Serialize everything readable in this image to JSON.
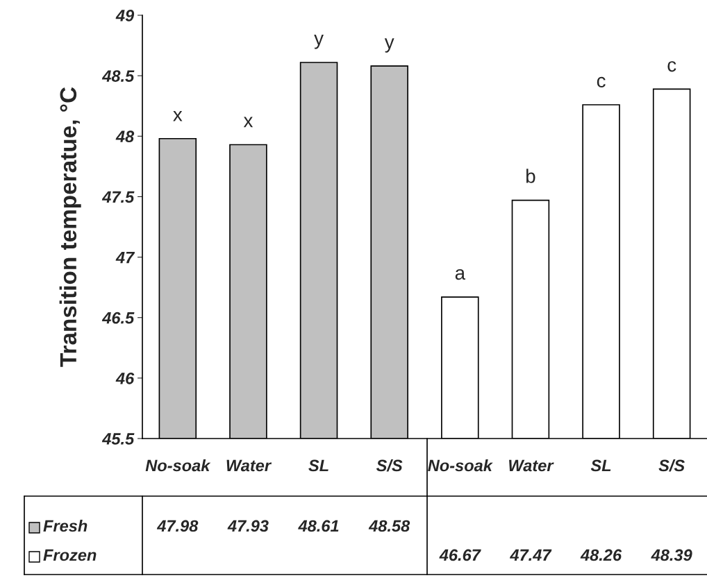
{
  "chart_data": {
    "type": "bar",
    "ylabel": "Transition temperatue, °C",
    "categories": [
      "No-soak",
      "Water",
      "SL",
      "S/S",
      "No-soak",
      "Water",
      "SL",
      "S/S"
    ],
    "series": [
      {
        "name": "Fresh",
        "color": "#c0c0c0",
        "values": [
          47.98,
          47.93,
          48.61,
          48.58,
          null,
          null,
          null,
          null
        ]
      },
      {
        "name": "Frozen",
        "color": "#ffffff",
        "values": [
          null,
          null,
          null,
          null,
          46.67,
          47.47,
          48.26,
          48.39
        ]
      }
    ],
    "ylim": [
      45.5,
      49
    ],
    "yticks": [
      45.5,
      46,
      46.5,
      47,
      47.5,
      48,
      48.5,
      49
    ],
    "data_labels": true,
    "legend": "bottom",
    "grid": false,
    "annotations": [
      "x",
      "x",
      "y",
      "y",
      "a",
      "b",
      "c",
      "c"
    ]
  }
}
